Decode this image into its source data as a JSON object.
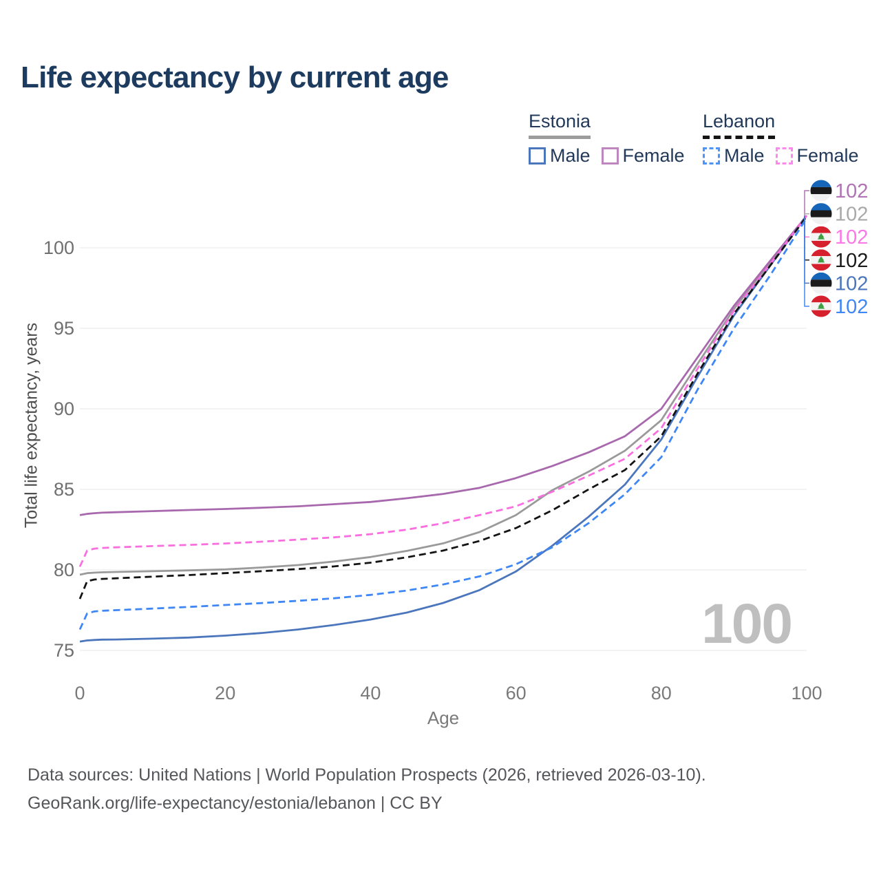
{
  "title": "Life expectancy by current age",
  "watermark": "100",
  "legend": {
    "groups": [
      {
        "id": "estonia",
        "label": "Estonia",
        "underline_style": "solid",
        "underline_color": "#9c9c9c",
        "items": [
          {
            "id": "estonia-male",
            "label": "Male",
            "color": "#4b76bc",
            "dash": false
          },
          {
            "id": "estonia-female",
            "label": "Female",
            "color": "#bd86bf",
            "dash": false
          }
        ]
      },
      {
        "id": "lebanon",
        "label": "Lebanon",
        "underline_style": "dashed",
        "underline_color": "#141414",
        "items": [
          {
            "id": "lebanon-male",
            "label": "Male",
            "color": "#4d94f8",
            "dash": true
          },
          {
            "id": "lebanon-female",
            "label": "Female",
            "color": "#fb8aec",
            "dash": true
          }
        ]
      }
    ]
  },
  "chart_data": {
    "type": "line",
    "title": "Life expectancy by current age",
    "xlabel": "Age",
    "ylabel": "Total life expectancy, years",
    "xlim": [
      0,
      100
    ],
    "ylim": [
      74.5,
      103
    ],
    "xticks": [
      0,
      20,
      40,
      60,
      80,
      100
    ],
    "yticks": [
      75,
      80,
      85,
      90,
      95,
      100
    ],
    "grid": "horizontal-only",
    "legend_position": "top-right",
    "x": [
      0,
      1,
      2,
      3,
      5,
      10,
      15,
      20,
      25,
      30,
      35,
      40,
      45,
      50,
      55,
      60,
      65,
      70,
      75,
      80,
      85,
      90,
      95,
      100
    ],
    "series": [
      {
        "id": "estonia",
        "name": "Estonia",
        "country": "Estonia",
        "sex": "Both",
        "color": "#9a9a9a",
        "dash": false,
        "values": [
          79.7,
          79.8,
          79.83,
          79.85,
          79.87,
          79.92,
          79.97,
          80.03,
          80.15,
          80.3,
          80.52,
          80.8,
          81.18,
          81.65,
          82.35,
          83.4,
          84.95,
          86.1,
          87.4,
          89.3,
          92.8,
          96.2,
          99.1,
          102.0
        ]
      },
      {
        "id": "estonia-female",
        "name": "Estonia Female",
        "country": "Estonia",
        "sex": "Female",
        "color": "#a868ad",
        "dash": false,
        "values": [
          83.4,
          83.48,
          83.52,
          83.55,
          83.58,
          83.65,
          83.72,
          83.78,
          83.86,
          83.95,
          84.08,
          84.22,
          84.45,
          84.72,
          85.1,
          85.7,
          86.45,
          87.3,
          88.3,
          90.0,
          93.2,
          96.4,
          99.2,
          102.0
        ]
      },
      {
        "id": "estonia-male",
        "name": "Estonia Male",
        "country": "Estonia",
        "sex": "Male",
        "color": "#4b76bc",
        "dash": false,
        "values": [
          75.55,
          75.62,
          75.65,
          75.67,
          75.68,
          75.73,
          75.8,
          75.92,
          76.08,
          76.3,
          76.58,
          76.92,
          77.35,
          77.95,
          78.75,
          79.9,
          81.5,
          83.3,
          85.3,
          88.1,
          92.0,
          95.8,
          98.9,
          102.0
        ]
      },
      {
        "id": "lebanon-female",
        "name": "Lebanon Female",
        "country": "Lebanon",
        "sex": "Female",
        "color": "#f96fe0",
        "dash": true,
        "values": [
          80.2,
          81.2,
          81.32,
          81.36,
          81.4,
          81.48,
          81.55,
          81.64,
          81.75,
          81.88,
          82.02,
          82.22,
          82.5,
          82.9,
          83.4,
          83.95,
          84.85,
          85.85,
          86.9,
          88.8,
          92.5,
          96.1,
          99.0,
          102.0
        ]
      },
      {
        "id": "lebanon",
        "name": "Lebanon",
        "country": "Lebanon",
        "sex": "Both",
        "color": "#141414",
        "dash": true,
        "values": [
          78.2,
          79.3,
          79.4,
          79.44,
          79.48,
          79.58,
          79.68,
          79.8,
          79.92,
          80.05,
          80.22,
          80.45,
          80.78,
          81.2,
          81.8,
          82.6,
          83.7,
          85.0,
          86.2,
          88.3,
          92.2,
          95.9,
          98.9,
          101.95
        ]
      },
      {
        "id": "lebanon-male",
        "name": "Lebanon Male",
        "country": "Lebanon",
        "sex": "Male",
        "color": "#3e87f5",
        "dash": true,
        "values": [
          76.3,
          77.3,
          77.42,
          77.46,
          77.5,
          77.6,
          77.7,
          77.82,
          77.94,
          78.08,
          78.24,
          78.45,
          78.72,
          79.1,
          79.6,
          80.35,
          81.4,
          82.9,
          84.7,
          87.0,
          91.2,
          95.0,
          98.3,
          101.85
        ]
      }
    ],
    "end_labels": [
      {
        "series_id": "estonia-female",
        "flag": "estonia",
        "value": "102",
        "color": "#b173b6"
      },
      {
        "series_id": "estonia",
        "flag": "estonia",
        "value": "102",
        "color": "#a9a9a9"
      },
      {
        "series_id": "lebanon-female",
        "flag": "lebanon",
        "value": "102",
        "color": "#fb78e6"
      },
      {
        "series_id": "lebanon",
        "flag": "lebanon",
        "value": "102",
        "color": "#1a1a1a"
      },
      {
        "series_id": "estonia-male",
        "flag": "estonia",
        "value": "102",
        "color": "#4b76bc"
      },
      {
        "series_id": "lebanon-male",
        "flag": "lebanon",
        "value": "102",
        "color": "#3e87f5"
      }
    ]
  },
  "footer": {
    "line1": "Data sources: United Nations | World Population Prospects (2026, retrieved 2026-03-10).",
    "line2": "GeoRank.org/life-expectancy/estonia/lebanon | CC BY"
  }
}
